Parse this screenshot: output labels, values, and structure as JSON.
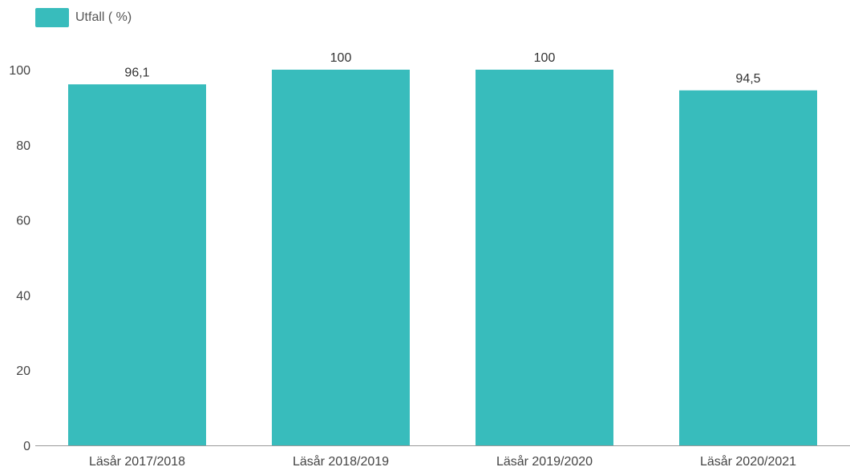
{
  "chart_data": {
    "type": "bar",
    "categories": [
      "Läsår 2017/2018",
      "Läsår 2018/2019",
      "Läsår 2019/2020",
      "Läsår 2020/2021"
    ],
    "series": [
      {
        "name": "Utfall ( %)",
        "values": [
          96.1,
          100,
          100,
          94.5
        ],
        "data_labels": [
          "96,1",
          "100",
          "100",
          "94,5"
        ],
        "color": "#38bcbc"
      }
    ],
    "yticks": [
      "0",
      "20",
      "40",
      "60",
      "80",
      "100"
    ],
    "ylim": [
      0,
      100
    ],
    "grid": false,
    "legend": "top-left",
    "axis_color": "#999999"
  }
}
